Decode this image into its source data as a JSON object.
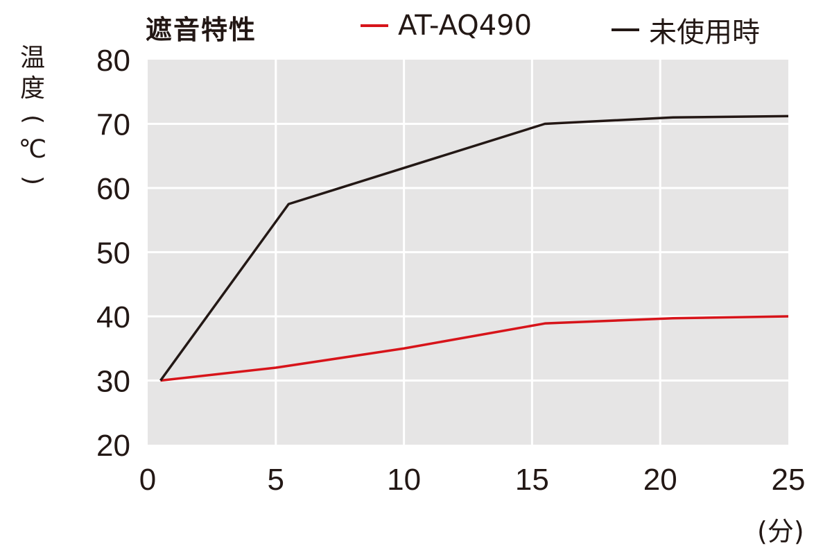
{
  "chart_data": {
    "type": "line",
    "title": "遮音特性",
    "ylabel": "温度(℃)",
    "xunit": "(分)",
    "x": [
      0,
      5,
      10,
      15,
      20,
      25
    ],
    "xlim": [
      0,
      25
    ],
    "ylim": [
      20,
      80
    ],
    "xticks": [
      "0",
      "5",
      "10",
      "15",
      "20",
      "25"
    ],
    "yticks": [
      "20",
      "30",
      "40",
      "50",
      "60",
      "70",
      "80"
    ],
    "grid": true,
    "legend_position": "top",
    "series": [
      {
        "name": "AT-AQ490",
        "color": "#d7141a",
        "x": [
          0.5,
          5,
          10,
          15.5,
          20.5,
          25
        ],
        "values": [
          30,
          32,
          35,
          38.9,
          39.7,
          40
        ]
      },
      {
        "name": "未使用時",
        "color": "#231815",
        "x": [
          0.5,
          5.5,
          15.5,
          20.5,
          25
        ],
        "values": [
          30,
          57.5,
          70,
          71,
          71.2
        ]
      }
    ],
    "plot_background": "#e6e5e5"
  }
}
